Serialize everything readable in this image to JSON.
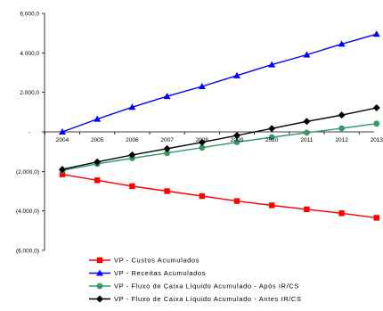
{
  "chart_data": {
    "type": "line",
    "title": "",
    "xlabel": "",
    "ylabel": "",
    "categories": [
      "2004",
      "2005",
      "2006",
      "2007",
      "2008",
      "2009",
      "2010",
      "2011",
      "2012",
      "2013"
    ],
    "ylim": [
      -6000,
      6000
    ],
    "yticks": [
      6000,
      4000,
      2000,
      0,
      -2000,
      -4000,
      -6000
    ],
    "ytick_labels": [
      "6.000,0",
      "4.000,0",
      "2.000,0",
      "-",
      "(2.000,0)",
      "(4.000,0)",
      "(6.000,0)"
    ],
    "grid": false,
    "legend_position": "bottom",
    "series": [
      {
        "name": "VP - Custos Acumulados",
        "color": "#ff0000",
        "marker": "square",
        "values": [
          -2150,
          -2450,
          -2750,
          -3000,
          -3250,
          -3500,
          -3720,
          -3920,
          -4120,
          -4350
        ]
      },
      {
        "name": "VP - Receitas Acumulados",
        "color": "#0000ff",
        "marker": "triangle",
        "values": [
          0,
          650,
          1250,
          1800,
          2300,
          2850,
          3400,
          3900,
          4450,
          4950
        ]
      },
      {
        "name": "VP - Fluxo de Caixa Líquido Acumulado - Após IR/CS",
        "color": "#339966",
        "marker": "circle",
        "values": [
          -1950,
          -1620,
          -1330,
          -1070,
          -800,
          -520,
          -270,
          -40,
          180,
          420
        ]
      },
      {
        "name": "VP - Fluxo de Caixa Líquido Acumulado - Antes IR/CS",
        "color": "#000000",
        "marker": "diamond",
        "values": [
          -1900,
          -1520,
          -1170,
          -850,
          -530,
          -180,
          170,
          530,
          850,
          1220
        ]
      }
    ]
  }
}
